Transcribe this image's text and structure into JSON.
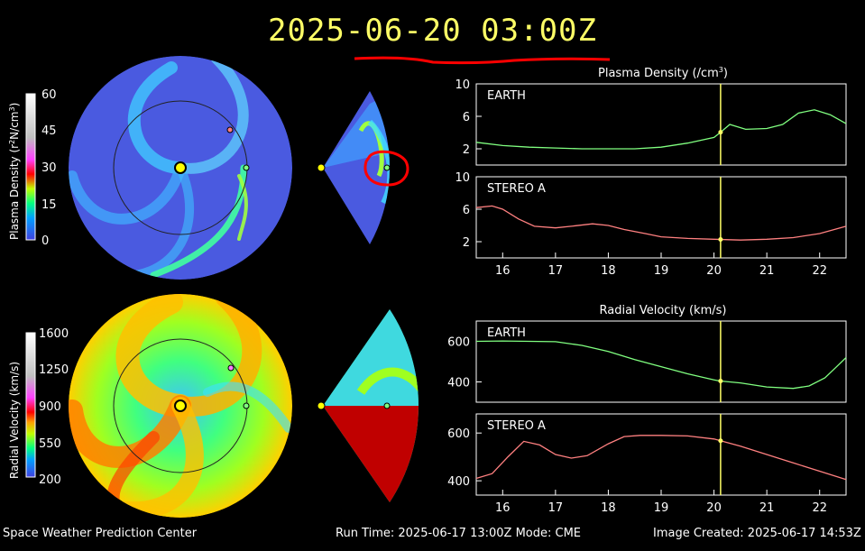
{
  "header": {
    "timestamp": "2025-06-20  03:00Z"
  },
  "colorbars": {
    "density": {
      "label_main": "Plasma Density (r",
      "label_sup1": "2",
      "label_mid": "N/cm",
      "label_sup2": "3",
      "label_end": ")",
      "ticks": [
        "60",
        "45",
        "30",
        "15",
        "0"
      ]
    },
    "velocity": {
      "label": "Radial Velocity (km/s)",
      "ticks": [
        "1600",
        "1250",
        "900",
        "550",
        "200"
      ]
    }
  },
  "footer": {
    "left": "Space Weather Prediction Center",
    "center": "Run Time: 2025-06-17 13:00Z  Mode: CME",
    "right": "Image Created: 2025-06-17 14:53Z"
  },
  "colors": {
    "earth": "#80ff80",
    "stereo_a": "#ff8080",
    "cursor": "#ffff66",
    "annotation": "#ff0000"
  },
  "chart_data": [
    {
      "type": "line",
      "title": "Plasma Density (/cm",
      "title_sup": "3",
      "title_end": ")",
      "panel": "EARTH",
      "x": [
        15.5,
        16,
        16.5,
        17,
        17.5,
        18,
        18.5,
        19,
        19.5,
        20,
        20.1,
        20.3,
        20.6,
        21,
        21.3,
        21.6,
        21.9,
        22.2,
        22.5
      ],
      "y": [
        2.8,
        2.4,
        2.2,
        2.1,
        2.0,
        2.0,
        2.0,
        2.2,
        2.7,
        3.4,
        3.9,
        5.0,
        4.4,
        4.5,
        5.0,
        6.4,
        6.8,
        6.2,
        5.1
      ],
      "ylim": [
        0,
        10
      ],
      "yticks": [
        "10",
        "6",
        "2"
      ],
      "cursor_x": 20.125
    },
    {
      "type": "line",
      "panel": "STEREO A",
      "x": [
        15.5,
        15.8,
        16,
        16.3,
        16.6,
        17,
        17.3,
        17.7,
        18,
        18.3,
        18.7,
        19,
        19.5,
        20,
        20.5,
        21,
        21.5,
        22,
        22.5
      ],
      "y": [
        6.2,
        6.4,
        6.0,
        4.8,
        3.9,
        3.7,
        3.9,
        4.2,
        4.0,
        3.5,
        3.0,
        2.6,
        2.4,
        2.3,
        2.2,
        2.3,
        2.5,
        3.0,
        3.9
      ],
      "ylim": [
        0,
        10
      ],
      "yticks": [
        "10",
        "6",
        "2"
      ],
      "xticks": [
        "16",
        "17",
        "18",
        "19",
        "20",
        "21",
        "22"
      ],
      "cursor_x": 20.125
    },
    {
      "type": "line",
      "title": "Radial Velocity (km/s)",
      "panel": "EARTH",
      "x": [
        15.5,
        16,
        16.5,
        17,
        17.5,
        18,
        18.5,
        19,
        19.5,
        20,
        20.1,
        20.5,
        21,
        21.5,
        21.8,
        22.1,
        22.3,
        22.5
      ],
      "y": [
        600,
        602,
        600,
        598,
        580,
        550,
        510,
        475,
        440,
        410,
        405,
        395,
        375,
        368,
        380,
        420,
        470,
        520
      ],
      "ylim": [
        300,
        700
      ],
      "yticks": [
        "600",
        "400"
      ],
      "cursor_x": 20.125
    },
    {
      "type": "line",
      "panel": "STEREO A",
      "x": [
        15.5,
        15.8,
        16.1,
        16.4,
        16.7,
        17,
        17.3,
        17.6,
        18,
        18.3,
        18.6,
        19,
        19.5,
        20,
        20.5,
        21,
        21.5,
        22,
        22.5
      ],
      "y": [
        410,
        430,
        500,
        565,
        550,
        510,
        495,
        505,
        555,
        585,
        590,
        590,
        588,
        575,
        545,
        510,
        475,
        440,
        405
      ],
      "ylim": [
        340,
        680
      ],
      "yticks": [
        "600",
        "400"
      ],
      "xticks": [
        "16",
        "17",
        "18",
        "19",
        "20",
        "21",
        "22"
      ],
      "cursor_x": 20.125
    }
  ]
}
